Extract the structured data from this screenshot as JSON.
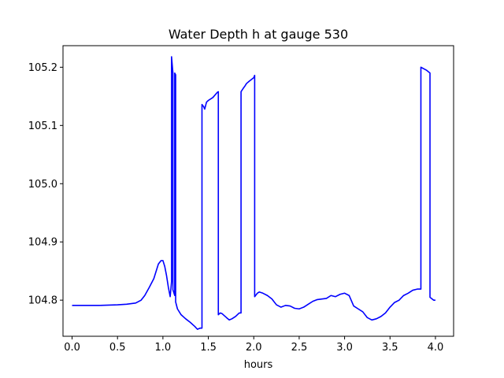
{
  "chart_data": {
    "type": "line",
    "title": "Water Depth h at gauge 530",
    "xlabel": "hours",
    "ylabel": "",
    "xlim": [
      -0.1,
      4.2
    ],
    "ylim": [
      104.738,
      105.237
    ],
    "xticks": [
      0.0,
      0.5,
      1.0,
      1.5,
      2.0,
      2.5,
      3.0,
      3.5,
      4.0
    ],
    "xtick_labels": [
      "0.0",
      "0.5",
      "1.0",
      "1.5",
      "2.0",
      "2.5",
      "3.0",
      "3.5",
      "4.0"
    ],
    "yticks": [
      104.8,
      104.9,
      105.0,
      105.1,
      105.2
    ],
    "ytick_labels": [
      "104.8",
      "104.9",
      "105.0",
      "105.1",
      "105.2"
    ],
    "grid": false,
    "series": [
      {
        "color": "#0000ff",
        "x": [
          0.0,
          0.1,
          0.3,
          0.5,
          0.6,
          0.7,
          0.76,
          0.8,
          0.85,
          0.9,
          0.95,
          0.98,
          1.0,
          1.02,
          1.04,
          1.06,
          1.08,
          1.095,
          1.095,
          1.11,
          1.11,
          1.13,
          1.13,
          1.14,
          1.14,
          1.16,
          1.2,
          1.25,
          1.3,
          1.35,
          1.38,
          1.41,
          1.43,
          1.43,
          1.45,
          1.46,
          1.48,
          1.5,
          1.55,
          1.6,
          1.61,
          1.61,
          1.63,
          1.65,
          1.7,
          1.73,
          1.76,
          1.8,
          1.84,
          1.86,
          1.86,
          1.89,
          1.9,
          1.92,
          1.95,
          2.0,
          2.01,
          2.01,
          2.04,
          2.06,
          2.1,
          2.15,
          2.2,
          2.25,
          2.3,
          2.35,
          2.4,
          2.45,
          2.5,
          2.55,
          2.6,
          2.65,
          2.7,
          2.75,
          2.8,
          2.85,
          2.9,
          2.95,
          3.0,
          3.05,
          3.1,
          3.15,
          3.2,
          3.25,
          3.3,
          3.35,
          3.4,
          3.45,
          3.5,
          3.55,
          3.6,
          3.65,
          3.7,
          3.75,
          3.8,
          3.84,
          3.84,
          3.9,
          3.94,
          3.94,
          3.98,
          4.0
        ],
        "y": [
          104.791,
          104.791,
          104.791,
          104.792,
          104.793,
          104.795,
          104.8,
          104.808,
          104.822,
          104.837,
          104.862,
          104.868,
          104.868,
          104.858,
          104.842,
          104.822,
          104.806,
          104.832,
          105.218,
          105.19,
          104.818,
          104.808,
          105.19,
          105.187,
          104.797,
          104.785,
          104.775,
          104.768,
          104.762,
          104.755,
          104.75,
          104.752,
          104.752,
          105.136,
          105.132,
          105.128,
          105.14,
          105.143,
          105.148,
          105.157,
          105.158,
          104.775,
          104.778,
          104.777,
          104.77,
          104.766,
          104.768,
          104.772,
          104.778,
          104.778,
          105.158,
          105.165,
          105.167,
          105.172,
          105.176,
          105.182,
          105.186,
          104.806,
          104.812,
          104.814,
          104.812,
          104.808,
          104.802,
          104.792,
          104.788,
          104.791,
          104.79,
          104.786,
          104.785,
          104.788,
          104.793,
          104.798,
          104.801,
          104.802,
          104.803,
          104.808,
          104.806,
          104.81,
          104.812,
          104.808,
          104.79,
          104.785,
          104.78,
          104.77,
          104.766,
          104.768,
          104.772,
          104.778,
          104.788,
          104.796,
          104.8,
          104.808,
          104.812,
          104.817,
          104.819,
          104.819,
          105.2,
          105.195,
          105.19,
          104.805,
          104.8,
          104.8
        ]
      }
    ]
  }
}
